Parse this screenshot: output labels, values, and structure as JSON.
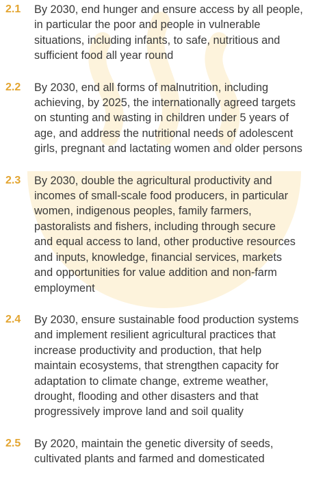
{
  "targets": [
    {
      "number": "2.1",
      "lines": [
        "By 2030, end hunger and ensure access by all people,",
        "in particular the poor and people in vulnerable",
        "situations, including infants, to safe, nutritious and",
        "sufficient food all year round"
      ]
    },
    {
      "number": "2.2",
      "lines": [
        "By 2030, end all forms of malnutrition, including",
        "achieving, by 2025, the internationally agreed targets",
        "on stunting and wasting in children under 5 years of",
        "age, and address the nutritional needs of adolescent",
        "girls, pregnant and lactating women and older persons"
      ]
    },
    {
      "number": "2.3",
      "lines": [
        "By 2030, double the agricultural productivity and",
        "incomes of small-scale food producers, in particular",
        "women, indigenous peoples, family farmers,",
        "pastoralists and fishers, including through secure",
        "and equal access to land, other productive resources",
        "and inputs, knowledge, financial services, markets",
        "and opportunities for value addition and non-farm",
        "employment"
      ]
    },
    {
      "number": "2.4",
      "lines": [
        "By 2030, ensure sustainable food production systems",
        "and implement resilient agricultural practices that",
        "increase productivity and production, that help",
        "maintain ecosystems, that strengthen capacity for",
        "adaptation to climate change, extreme weather,",
        "drought, flooding and other disasters and that",
        "progressively improve land and soil quality"
      ]
    },
    {
      "number": "2.5",
      "lines": [
        "By 2020, maintain the genetic diversity of seeds,",
        "cultivated plants and farmed and domesticated"
      ]
    }
  ]
}
